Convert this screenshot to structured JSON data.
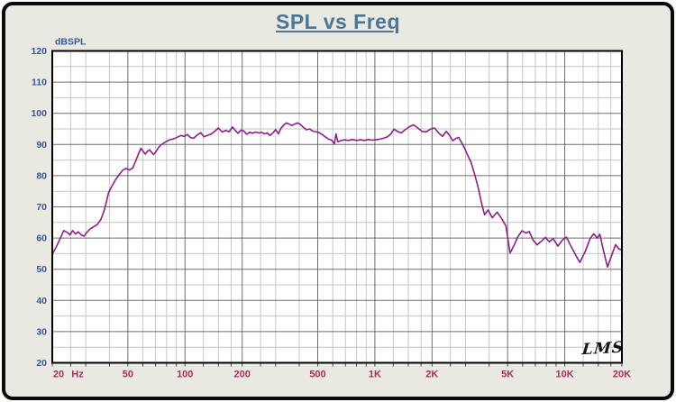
{
  "colors": {
    "title": "#4a7794",
    "y_axis_labels": "#36569b",
    "x_axis_labels": "#aa2d62",
    "curve": "#8b1f8b",
    "grid_major": "#6e6e6e",
    "grid_minor": "#c6c6c6",
    "plot_background": "#ffffff",
    "panel_background": "#e9e9e2",
    "frame_border": "#0a0a0a"
  },
  "watermark": "LMS",
  "chart_data": {
    "type": "line",
    "title": "SPL vs Freq",
    "ylabel": "dBSPL",
    "x_scale": "log",
    "xlim": [
      20,
      20000
    ],
    "ylim": [
      20,
      120
    ],
    "y_major_step": 10,
    "y_minor_step": 5,
    "y_tick_labels": [
      "120",
      "110",
      "100",
      "90",
      "80",
      "70",
      "60",
      "50",
      "40",
      "30",
      "20"
    ],
    "x_ticks": [
      {
        "f": 20,
        "label": "20 Hz"
      },
      {
        "f": 50,
        "label": "50"
      },
      {
        "f": 100,
        "label": "100"
      },
      {
        "f": 200,
        "label": "200"
      },
      {
        "f": 500,
        "label": "500"
      },
      {
        "f": 1000,
        "label": "1K"
      },
      {
        "f": 2000,
        "label": "2K"
      },
      {
        "f": 5000,
        "label": "5K"
      },
      {
        "f": 10000,
        "label": "10K"
      },
      {
        "f": 20000,
        "label": "20K"
      }
    ],
    "x_minor_multipliers": [
      1.25,
      1.5,
      1.75,
      2.5,
      3,
      4,
      6,
      7,
      8,
      9
    ],
    "x_decades": [
      10,
      100,
      1000,
      10000
    ],
    "grid": true,
    "legend": "none",
    "series": [
      {
        "name": "SPL",
        "color": "#8b1f8b",
        "points": [
          [
            20,
            54.8
          ],
          [
            21,
            57.2
          ],
          [
            22,
            59.8
          ],
          [
            23,
            62.4
          ],
          [
            24,
            61.8
          ],
          [
            24.8,
            61.0
          ],
          [
            25.6,
            62.4
          ],
          [
            26.5,
            61.3
          ],
          [
            27.4,
            62.0
          ],
          [
            28.4,
            61.0
          ],
          [
            29.4,
            60.6
          ],
          [
            30.5,
            61.9
          ],
          [
            31.6,
            62.9
          ],
          [
            33,
            63.6
          ],
          [
            34.5,
            64.3
          ],
          [
            36,
            65.9
          ],
          [
            37.3,
            68.3
          ],
          [
            38.5,
            71.4
          ],
          [
            39.6,
            74.6
          ],
          [
            41,
            76.4
          ],
          [
            43,
            78.6
          ],
          [
            45,
            80.3
          ],
          [
            47,
            81.8
          ],
          [
            49,
            82.3
          ],
          [
            51,
            81.8
          ],
          [
            53,
            82.5
          ],
          [
            55,
            84.7
          ],
          [
            57,
            87.1
          ],
          [
            58.6,
            88.8
          ],
          [
            60.2,
            87.8
          ],
          [
            61.8,
            86.9
          ],
          [
            63.4,
            87.8
          ],
          [
            65,
            88.3
          ],
          [
            66.6,
            87.5
          ],
          [
            68.4,
            86.8
          ],
          [
            70.3,
            87.7
          ],
          [
            72.3,
            88.9
          ],
          [
            74.5,
            89.8
          ],
          [
            77,
            90.4
          ],
          [
            80,
            91.0
          ],
          [
            83.5,
            91.6
          ],
          [
            87,
            91.8
          ],
          [
            91,
            92.3
          ],
          [
            95,
            92.9
          ],
          [
            99,
            92.6
          ],
          [
            103,
            93.2
          ],
          [
            107,
            92.2
          ],
          [
            111,
            92.0
          ],
          [
            115,
            92.9
          ],
          [
            121,
            93.8
          ],
          [
            126,
            92.5
          ],
          [
            131,
            92.9
          ],
          [
            137,
            93.3
          ],
          [
            144,
            94.3
          ],
          [
            150,
            95.3
          ],
          [
            157,
            94.0
          ],
          [
            164,
            94.5
          ],
          [
            171,
            94.1
          ],
          [
            178,
            95.6
          ],
          [
            184,
            94.5
          ],
          [
            190,
            93.6
          ],
          [
            197,
            94.6
          ],
          [
            204,
            94.3
          ],
          [
            211,
            93.3
          ],
          [
            219,
            93.9
          ],
          [
            227,
            93.6
          ],
          [
            235,
            94.0
          ],
          [
            244,
            93.7
          ],
          [
            253,
            93.9
          ],
          [
            262,
            93.4
          ],
          [
            271,
            93.7
          ],
          [
            280,
            92.9
          ],
          [
            291,
            93.8
          ],
          [
            300,
            94.8
          ],
          [
            310,
            93.4
          ],
          [
            320,
            95.2
          ],
          [
            331,
            96.2
          ],
          [
            342,
            96.9
          ],
          [
            354,
            96.5
          ],
          [
            365,
            96.1
          ],
          [
            377,
            96.5
          ],
          [
            390,
            96.9
          ],
          [
            404,
            96.5
          ],
          [
            420,
            95.5
          ],
          [
            436,
            94.7
          ],
          [
            453,
            95.0
          ],
          [
            470,
            94.3
          ],
          [
            487,
            94.1
          ],
          [
            505,
            93.9
          ],
          [
            525,
            93.3
          ],
          [
            546,
            92.5
          ],
          [
            570,
            91.7
          ],
          [
            592,
            91.4
          ],
          [
            612,
            90.2
          ],
          [
            624,
            93.4
          ],
          [
            638,
            90.9
          ],
          [
            660,
            91.2
          ],
          [
            690,
            91.5
          ],
          [
            725,
            91.3
          ],
          [
            760,
            91.6
          ],
          [
            800,
            91.3
          ],
          [
            840,
            91.5
          ],
          [
            880,
            91.3
          ],
          [
            925,
            91.6
          ],
          [
            965,
            91.4
          ],
          [
            1010,
            91.5
          ],
          [
            1060,
            91.7
          ],
          [
            1110,
            92.0
          ],
          [
            1160,
            92.4
          ],
          [
            1210,
            93.3
          ],
          [
            1260,
            94.9
          ],
          [
            1315,
            94.2
          ],
          [
            1375,
            93.7
          ],
          [
            1440,
            94.7
          ],
          [
            1520,
            95.7
          ],
          [
            1600,
            96.3
          ],
          [
            1690,
            95.2
          ],
          [
            1780,
            94.1
          ],
          [
            1870,
            94.1
          ],
          [
            1960,
            94.9
          ],
          [
            2060,
            95.3
          ],
          [
            2160,
            93.8
          ],
          [
            2270,
            92.6
          ],
          [
            2380,
            94.2
          ],
          [
            2480,
            92.8
          ],
          [
            2570,
            91.2
          ],
          [
            2670,
            91.9
          ],
          [
            2760,
            92.3
          ],
          [
            2860,
            90.6
          ],
          [
            2960,
            89.0
          ],
          [
            3070,
            86.8
          ],
          [
            3210,
            84.3
          ],
          [
            3360,
            80.2
          ],
          [
            3510,
            75.9
          ],
          [
            3650,
            71.0
          ],
          [
            3780,
            67.5
          ],
          [
            3950,
            69.0
          ],
          [
            4150,
            66.5
          ],
          [
            4400,
            68.3
          ],
          [
            4650,
            66.3
          ],
          [
            4900,
            63.9
          ],
          [
            5150,
            55.2
          ],
          [
            5400,
            57.6
          ],
          [
            5650,
            60.3
          ],
          [
            5950,
            62.3
          ],
          [
            6250,
            61.6
          ],
          [
            6500,
            62.1
          ],
          [
            6800,
            59.4
          ],
          [
            7150,
            57.8
          ],
          [
            7500,
            58.9
          ],
          [
            7900,
            60.2
          ],
          [
            8300,
            58.8
          ],
          [
            8700,
            59.8
          ],
          [
            9200,
            57.4
          ],
          [
            9700,
            59.3
          ],
          [
            10200,
            60.3
          ],
          [
            10800,
            57.3
          ],
          [
            11400,
            54.6
          ],
          [
            12000,
            52.2
          ],
          [
            12800,
            55.6
          ],
          [
            13600,
            59.8
          ],
          [
            14200,
            61.4
          ],
          [
            14800,
            60.0
          ],
          [
            15300,
            61.2
          ],
          [
            16000,
            55.9
          ],
          [
            16800,
            50.7
          ],
          [
            17600,
            54.2
          ],
          [
            18500,
            57.9
          ],
          [
            19300,
            56.5
          ],
          [
            20000,
            56.2
          ]
        ]
      }
    ]
  }
}
